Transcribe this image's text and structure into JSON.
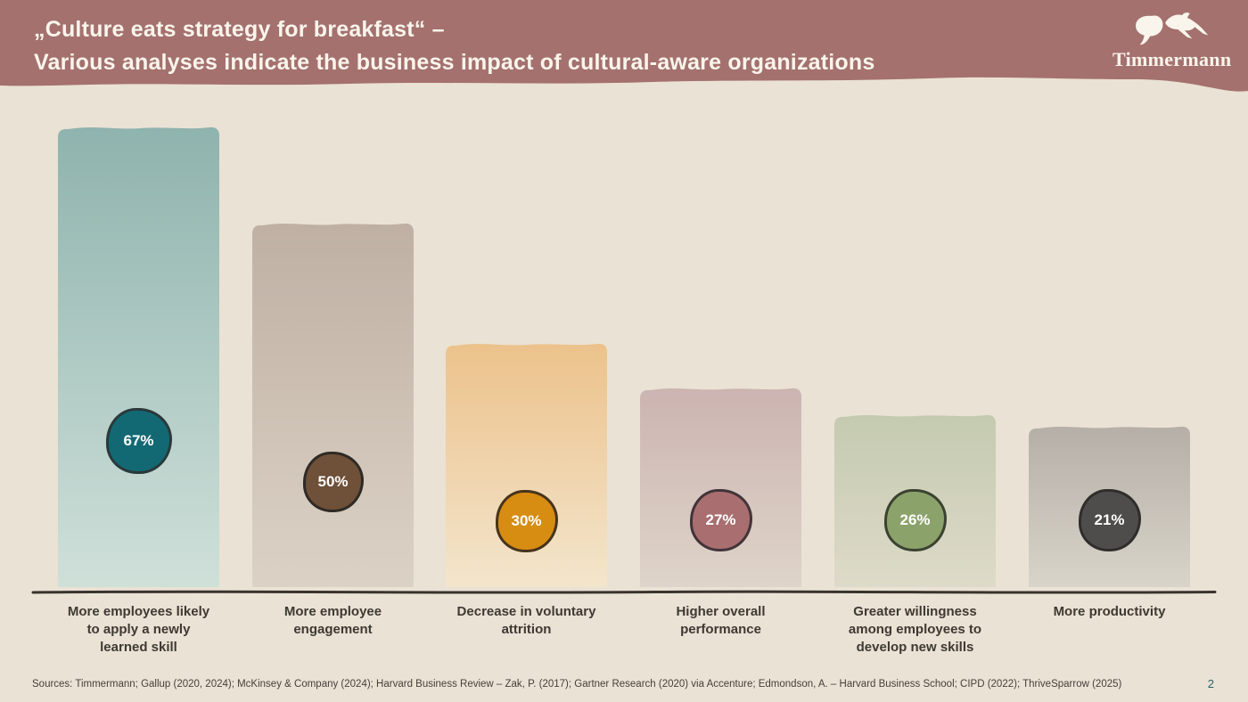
{
  "background_color": "#eae2d4",
  "header": {
    "title_line1": "„Culture eats strategy for breakfast“ –",
    "title_line2": "Various analyses indicate the business impact of cultural-aware organizations",
    "brand": "Timmermann",
    "band_color": "#a4716e",
    "text_color": "#faf5ec"
  },
  "chart_data": {
    "type": "bar",
    "title": "Business impact of cultural-aware organizations",
    "unit": "%",
    "ylim": [
      0,
      70
    ],
    "grid": false,
    "legend": "none",
    "categories": [
      "More employees likely\nto apply a newly\nlearned skill",
      "More employee\nengagement",
      "Decrease in voluntary\nattrition",
      "Higher overall\nperformance",
      "Greater willingness\namong employees to\ndevelop new skills",
      "More productivity"
    ],
    "values": [
      67,
      50,
      30,
      27,
      26,
      21
    ],
    "value_labels": [
      "67%",
      "50%",
      "30%",
      "27%",
      "26%",
      "21%"
    ],
    "bar_styles": [
      {
        "gradient_top": "#8fb3ae",
        "gradient_bottom": "#cfe0d9",
        "badge_fill": "#136973",
        "badge_border": "#2a393b"
      },
      {
        "gradient_top": "#bfb0a3",
        "gradient_bottom": "#dbd2c5",
        "badge_fill": "#6f5038",
        "badge_border": "#2f2a25"
      },
      {
        "gradient_top": "#ecc28b",
        "gradient_bottom": "#f3e5cc",
        "badge_fill": "#d78c12",
        "badge_border": "#46331d"
      },
      {
        "gradient_top": "#ccb4b1",
        "gradient_bottom": "#ded4c9",
        "badge_fill": "#a96e70",
        "badge_border": "#413439"
      },
      {
        "gradient_top": "#c4cab0",
        "gradient_bottom": "#dedac9",
        "badge_fill": "#8ca26b",
        "badge_border": "#3a4231"
      },
      {
        "gradient_top": "#b5afa7",
        "gradient_bottom": "#d9d4ca",
        "badge_fill": "#4f4d4b",
        "badge_border": "#2f2e2d"
      }
    ],
    "axis_color": "#39332d",
    "label_color": "#3e3933",
    "badge_text_color": "#ffffff"
  },
  "footer": {
    "sources": "Sources: Timmermann; Gallup (2020, 2024); McKinsey & Company (2024); Harvard Business Review – Zak, P. (2017); Gartner Research (2020) via Accenture; Edmondson, A. – Harvard Business School; CIPD (2022); ThriveSparrow (2025)",
    "sources_color": "#45403a",
    "page_number": "2",
    "page_number_color": "#2d6067"
  }
}
